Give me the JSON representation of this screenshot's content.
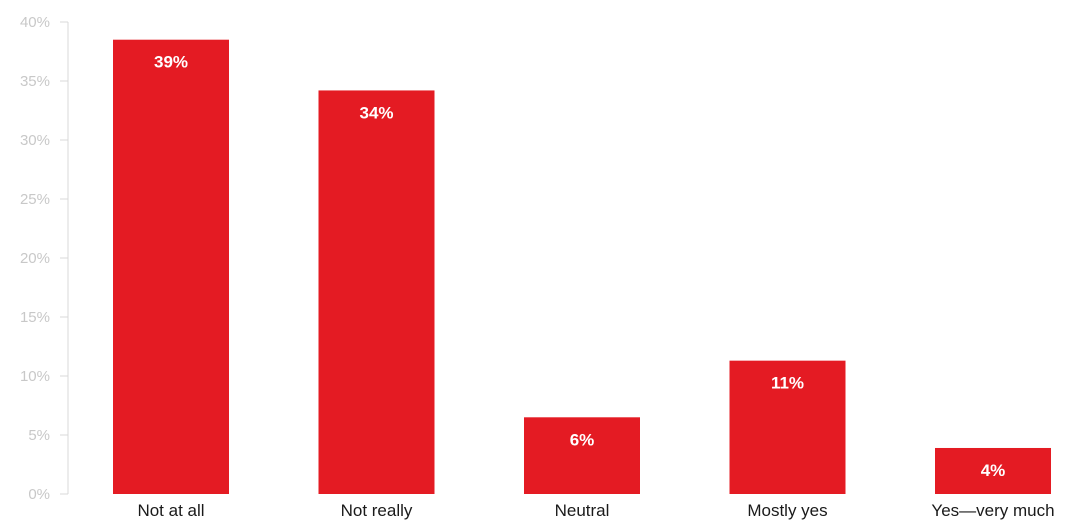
{
  "chart_data": {
    "type": "bar",
    "categories": [
      "Not at all",
      "Not really",
      "Neutral",
      "Mostly yes",
      "Yes—very much"
    ],
    "values": [
      38.5,
      34.2,
      6.5,
      11.3,
      3.9
    ],
    "data_labels": [
      "39%",
      "34%",
      "6%",
      "11%",
      "4%"
    ],
    "ylim": [
      0,
      40
    ],
    "yticks": [
      0,
      5,
      10,
      15,
      20,
      25,
      30,
      35,
      40
    ],
    "ytick_labels": [
      "0%",
      "5%",
      "10%",
      "15%",
      "20%",
      "25%",
      "30%",
      "35%",
      "40%"
    ],
    "bar_color": "#e41b23",
    "grid": false,
    "title": "",
    "xlabel": "",
    "ylabel": ""
  }
}
